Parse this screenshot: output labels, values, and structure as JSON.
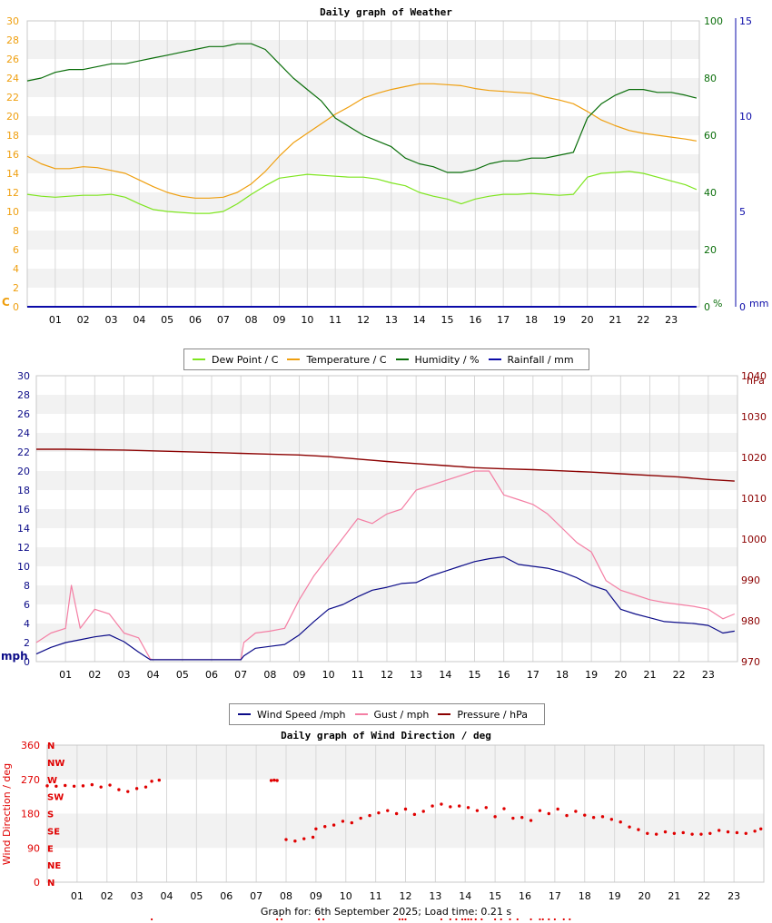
{
  "colors": {
    "dew": "#7ee51f",
    "temp": "#ef9f0f",
    "hum": "#0a6e0a",
    "rain": "#0b0ba8",
    "wind": "#0b0b88",
    "gust": "#f47fa4",
    "pres": "#8b0000",
    "dir": "#e00000",
    "band": "#f2f2f2",
    "grid": "#d8d8d8"
  },
  "hour_labels": [
    "01",
    "02",
    "03",
    "04",
    "05",
    "06",
    "07",
    "08",
    "09",
    "10",
    "11",
    "12",
    "13",
    "14",
    "15",
    "16",
    "17",
    "18",
    "19",
    "20",
    "21",
    "22",
    "23"
  ],
  "chart_data": [
    {
      "type": "line",
      "title": "Daily graph of Weather",
      "xlabel": "",
      "x_range": [
        0,
        24
      ],
      "axes": {
        "left": {
          "unit": "C",
          "ylim": [
            0,
            30
          ],
          "ticks": [
            "0",
            "2",
            "4",
            "6",
            "8",
            "10",
            "12",
            "14",
            "16",
            "18",
            "20",
            "22",
            "24",
            "26",
            "28",
            "30"
          ]
        },
        "right1": {
          "unit": "%",
          "ylim": [
            0,
            100
          ],
          "ticks": [
            "0",
            "20",
            "40",
            "60",
            "80",
            "100"
          ]
        },
        "right2": {
          "unit": "mm",
          "ylim": [
            0,
            15
          ],
          "ticks": [
            "0",
            "5",
            "10",
            "15"
          ]
        }
      },
      "series": [
        {
          "name": "Dew Point / C",
          "axis": "left",
          "x": [
            0,
            0.5,
            1,
            1.5,
            2,
            2.5,
            3,
            3.5,
            4,
            4.5,
            5,
            5.5,
            6,
            6.5,
            7,
            7.5,
            8,
            8.5,
            9,
            9.5,
            10,
            10.5,
            11,
            11.5,
            12,
            12.5,
            13,
            13.5,
            14,
            14.5,
            15,
            15.5,
            16,
            16.5,
            17,
            17.5,
            18,
            18.5,
            19,
            19.5,
            20,
            20.5,
            21,
            21.5,
            22,
            22.5,
            23,
            23.5,
            23.9
          ],
          "y": [
            11.8,
            11.6,
            11.5,
            11.6,
            11.7,
            11.7,
            11.8,
            11.5,
            10.8,
            10.2,
            10.0,
            9.9,
            9.8,
            9.8,
            10.0,
            10.8,
            11.8,
            12.7,
            13.5,
            13.7,
            13.9,
            13.8,
            13.7,
            13.6,
            13.6,
            13.4,
            13.0,
            12.7,
            12.0,
            11.6,
            11.3,
            10.8,
            11.3,
            11.6,
            11.8,
            11.8,
            11.9,
            11.8,
            11.7,
            11.8,
            13.6,
            14.0,
            14.1,
            14.2,
            14.0,
            13.6,
            13.2,
            12.8,
            12.3
          ]
        },
        {
          "name": "Temperature / C",
          "axis": "left",
          "x": [
            0,
            0.5,
            1,
            1.5,
            2,
            2.5,
            3,
            3.5,
            4,
            4.5,
            5,
            5.5,
            6,
            6.5,
            7,
            7.5,
            8,
            8.5,
            9,
            9.5,
            10,
            10.5,
            11,
            11.5,
            12,
            12.5,
            13,
            13.5,
            14,
            14.5,
            15,
            15.5,
            16,
            16.5,
            17,
            17.5,
            18,
            18.5,
            19,
            19.5,
            20,
            20.5,
            21,
            21.5,
            22,
            22.5,
            23,
            23.5,
            23.9
          ],
          "y": [
            15.8,
            15.0,
            14.5,
            14.5,
            14.7,
            14.6,
            14.3,
            14.0,
            13.3,
            12.6,
            12.0,
            11.6,
            11.4,
            11.4,
            11.5,
            12.0,
            12.9,
            14.2,
            15.8,
            17.2,
            18.2,
            19.2,
            20.2,
            21.0,
            21.9,
            22.4,
            22.8,
            23.1,
            23.4,
            23.4,
            23.3,
            23.2,
            22.9,
            22.7,
            22.6,
            22.5,
            22.4,
            22.0,
            21.7,
            21.3,
            20.5,
            19.6,
            19.0,
            18.5,
            18.2,
            18.0,
            17.8,
            17.6,
            17.4
          ]
        },
        {
          "name": "Humidity / %",
          "axis": "right1",
          "x": [
            0,
            0.5,
            1,
            1.5,
            2,
            2.5,
            3,
            3.5,
            4,
            4.5,
            5,
            5.5,
            6,
            6.5,
            7,
            7.5,
            8,
            8.5,
            9,
            9.5,
            10,
            10.5,
            11,
            11.5,
            12,
            12.5,
            13,
            13.5,
            14,
            14.5,
            15,
            15.5,
            16,
            16.5,
            17,
            17.5,
            18,
            18.5,
            19,
            19.5,
            20,
            20.5,
            21,
            21.5,
            22,
            22.5,
            23,
            23.5,
            23.9
          ],
          "y": [
            79,
            80,
            82,
            83,
            83,
            84,
            85,
            85,
            86,
            87,
            88,
            89,
            90,
            91,
            91,
            92,
            92,
            90,
            85,
            80,
            76,
            72,
            66,
            63,
            60,
            58,
            56,
            52,
            50,
            49,
            47,
            47,
            48,
            50,
            51,
            51,
            52,
            52,
            53,
            54,
            66,
            71,
            74,
            76,
            76,
            75,
            75,
            74,
            73
          ]
        },
        {
          "name": "Rainfall / mm",
          "axis": "right2",
          "x": [
            0,
            23.9
          ],
          "y": [
            0,
            0
          ]
        }
      ],
      "legend": "bottom"
    },
    {
      "type": "line",
      "title": "",
      "x_range": [
        0,
        24
      ],
      "axes": {
        "left": {
          "unit": "mph",
          "ylim": [
            0,
            30
          ],
          "ticks": [
            "0",
            "2",
            "4",
            "6",
            "8",
            "10",
            "12",
            "14",
            "16",
            "18",
            "20",
            "22",
            "24",
            "26",
            "28",
            "30"
          ]
        },
        "right": {
          "unit": "hPa",
          "ylim": [
            970,
            1040
          ],
          "ticks": [
            "970",
            "980",
            "990",
            "1000",
            "1010",
            "1020",
            "1030",
            "1040"
          ]
        }
      },
      "series": [
        {
          "name": "Wind Speed /mph",
          "axis": "left",
          "x": [
            0,
            0.5,
            1,
            1.5,
            2,
            2.5,
            3,
            3.5,
            3.9,
            4,
            5,
            6,
            7,
            7.1,
            7.5,
            8,
            8.5,
            9,
            9.5,
            10,
            10.5,
            11,
            11.5,
            12,
            12.5,
            13,
            13.5,
            14,
            14.5,
            15,
            15.5,
            16,
            16.5,
            17,
            17.5,
            18,
            18.5,
            19,
            19.5,
            20,
            20.5,
            21,
            21.5,
            22,
            22.5,
            23,
            23.5,
            23.9
          ],
          "y": [
            0.8,
            1.5,
            2.0,
            2.3,
            2.6,
            2.8,
            2.1,
            1.0,
            0.2,
            0.2,
            0.2,
            0.2,
            0.2,
            0.6,
            1.4,
            1.6,
            1.8,
            2.8,
            4.2,
            5.5,
            6.0,
            6.8,
            7.5,
            7.8,
            8.2,
            8.3,
            9.0,
            9.5,
            10.0,
            10.5,
            10.8,
            11.0,
            10.2,
            10.0,
            9.8,
            9.4,
            8.8,
            8.0,
            7.5,
            5.5,
            5.0,
            4.6,
            4.2,
            4.1,
            4.0,
            3.8,
            3.0,
            3.2
          ]
        },
        {
          "name": "Gust / mph",
          "axis": "left",
          "x": [
            0,
            0.5,
            1,
            1.2,
            1.5,
            2,
            2.5,
            3,
            3.5,
            3.9,
            4,
            5,
            6,
            7,
            7.1,
            7.5,
            8,
            8.5,
            9,
            9.5,
            10,
            10.5,
            11,
            11.5,
            12,
            12.5,
            13,
            13.5,
            14,
            14.5,
            15,
            15.5,
            16,
            16.5,
            17,
            17.5,
            18,
            18.5,
            19,
            19.5,
            20,
            20.5,
            21,
            21.5,
            22,
            22.5,
            23,
            23.5,
            23.9
          ],
          "y": [
            2.0,
            3.0,
            3.5,
            8.0,
            3.5,
            5.5,
            5.0,
            3.0,
            2.5,
            0.3,
            0.2,
            0.2,
            0.2,
            0.2,
            2.0,
            3.0,
            3.2,
            3.5,
            6.5,
            9.0,
            11.0,
            13.0,
            15.0,
            14.5,
            15.5,
            16.0,
            18.0,
            18.5,
            19.0,
            19.5,
            20.0,
            20.0,
            17.5,
            17.0,
            16.5,
            15.5,
            14.0,
            12.5,
            11.5,
            8.5,
            7.5,
            7.0,
            6.5,
            6.2,
            6.0,
            5.8,
            5.5,
            4.5,
            5.0
          ]
        },
        {
          "name": "Pressure / hPa",
          "axis": "right",
          "x": [
            0,
            1,
            2,
            3,
            4,
            5,
            6,
            7,
            8,
            9,
            10,
            11,
            12,
            13,
            14,
            15,
            16,
            17,
            18,
            19,
            20,
            21,
            22,
            23,
            23.9
          ],
          "y": [
            1022.0,
            1022.0,
            1021.9,
            1021.8,
            1021.6,
            1021.4,
            1021.2,
            1021.0,
            1020.8,
            1020.6,
            1020.2,
            1019.6,
            1019.0,
            1018.5,
            1018.0,
            1017.5,
            1017.2,
            1017.0,
            1016.7,
            1016.4,
            1016.0,
            1015.6,
            1015.2,
            1014.6,
            1014.2
          ]
        }
      ],
      "legend": "bottom"
    },
    {
      "type": "scatter",
      "title": "Daily graph of Wind Direction / deg",
      "ylabel": "Wind Direction / deg",
      "x_range": [
        0,
        24
      ],
      "ylim": [
        0,
        360
      ],
      "y_ticks": [
        "0",
        "90",
        "180",
        "270",
        "360"
      ],
      "compass_labels": [
        "N",
        "NE",
        "E",
        "SE",
        "S",
        "SW",
        "W",
        "NW",
        "N"
      ],
      "series": [
        {
          "name": "Wind Direction",
          "segments": [
            {
              "x": [
                0.0,
                0.3,
                0.6,
                0.9,
                1.2,
                1.5,
                1.8,
                2.1,
                2.4,
                2.7,
                3.0,
                3.3,
                3.5,
                3.75
              ],
              "y": [
                253,
                252,
                254,
                252,
                253,
                256,
                250,
                255,
                243,
                238,
                246,
                250,
                265,
                268
              ]
            },
            {
              "x": [
                7.5,
                7.6,
                7.7
              ],
              "y": [
                267,
                268,
                267
              ]
            },
            {
              "x": [
                8.0,
                8.3,
                8.6,
                8.9,
                9.0,
                9.3,
                9.6,
                9.9,
                10.2,
                10.5,
                10.8,
                11.1,
                11.4,
                11.7,
                12.0,
                12.3,
                12.6,
                12.9,
                13.2,
                13.5,
                13.8,
                14.1,
                14.4,
                14.7,
                15.0,
                15.3,
                15.6,
                15.9,
                16.2,
                16.5,
                16.8,
                17.1,
                17.4,
                17.7,
                18.0,
                18.3,
                18.6,
                18.9,
                19.2,
                19.5,
                19.8,
                20.1,
                20.4,
                20.7,
                21.0,
                21.3,
                21.6,
                21.9,
                22.2,
                22.5,
                22.8,
                23.1,
                23.4,
                23.7,
                23.9
              ],
              "y": [
                112,
                108,
                114,
                118,
                140,
                146,
                150,
                160,
                156,
                168,
                175,
                182,
                188,
                180,
                192,
                178,
                186,
                200,
                205,
                198,
                200,
                196,
                188,
                196,
                172,
                193,
                168,
                170,
                162,
                188,
                180,
                192,
                175,
                186,
                176,
                170,
                172,
                165,
                158,
                145,
                138,
                128,
                126,
                132,
                128,
                130,
                126,
                126,
                128,
                136,
                132,
                130,
                128,
                134,
                140
              ]
            },
            {
              "x": [
                3.5,
                7.7,
                7.85,
                9.1,
                9.25,
                11.8,
                11.9,
                12.0,
                13.2,
                13.5,
                13.7,
                13.9,
                14.0,
                14.1,
                14.2,
                14.35,
                14.55,
                15.0,
                15.2,
                15.5,
                15.75,
                16.2,
                16.5,
                16.6,
                16.8,
                17.0,
                17.3,
                17.5
              ],
              "y": [
                0,
                0,
                0,
                0,
                0,
                0,
                0,
                0,
                0,
                0,
                0,
                0,
                0,
                0,
                0,
                0,
                0,
                0,
                0,
                0,
                0,
                0,
                0,
                0,
                0,
                0,
                0,
                0
              ]
            }
          ]
        }
      ]
    }
  ],
  "legend1": {
    "items": [
      "Dew Point / C",
      "Temperature / C",
      "Humidity / %",
      "Rainfall / mm"
    ]
  },
  "legend2": {
    "items": [
      "Wind Speed /mph",
      "Gust / mph",
      "Pressure / hPa"
    ]
  },
  "footer": "Graph for: 6th September 2025; Load time: 0.21 s"
}
